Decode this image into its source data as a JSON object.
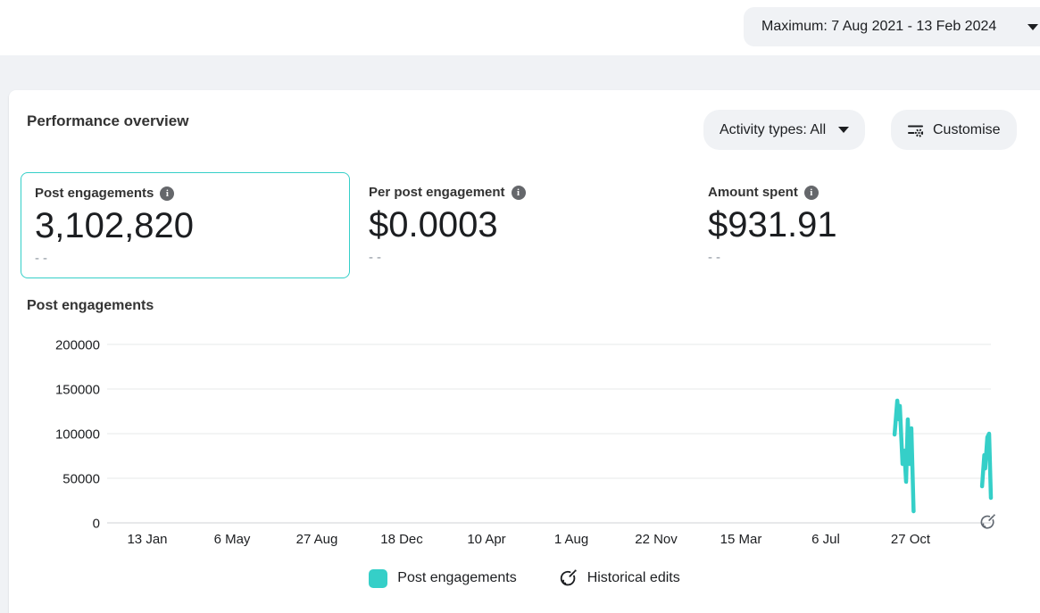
{
  "topbar": {
    "date_range_button": "Maximum: 7 Aug 2021 - 13 Feb 2024"
  },
  "panel": {
    "title": "Performance overview",
    "activity_types_button": "Activity types: All",
    "customise_button": "Customise",
    "metrics": [
      {
        "label": "Post engagements",
        "value": "3,102,820",
        "sub": "--",
        "selected": true
      },
      {
        "label": "Per post engagement",
        "value": "$0.0003",
        "sub": "--",
        "selected": false
      },
      {
        "label": "Amount spent",
        "value": "$931.91",
        "sub": "--",
        "selected": false
      }
    ],
    "chart_title": "Post engagements",
    "legend": {
      "series_label": "Post engagements",
      "historical_label": "Historical edits"
    }
  },
  "colors": {
    "accent": "#35cfc8",
    "grid": "#e7e8ea",
    "axis": "#cfd1d5"
  },
  "chart_data": {
    "type": "line",
    "title": "Post engagements",
    "xlabel": "",
    "ylabel": "",
    "ylim": [
      0,
      200000
    ],
    "yticks": [
      0,
      50000,
      100000,
      150000,
      200000
    ],
    "x_tick_labels": [
      "13 Jan",
      "6 May",
      "27 Aug",
      "18 Dec",
      "10 Apr",
      "1 Aug",
      "22 Nov",
      "15 Mar",
      "6 Jul",
      "27 Oct"
    ],
    "grid": true,
    "legend_position": "bottom",
    "color": "#35cfc8",
    "series": [
      {
        "name": "Post engagements",
        "segments": [
          [
            {
              "x": 0.891,
              "v": 99000
            },
            {
              "x": 0.894,
              "v": 137000
            },
            {
              "x": 0.896,
              "v": 116000
            },
            {
              "x": 0.897,
              "v": 131000
            },
            {
              "x": 0.9,
              "v": 66000
            },
            {
              "x": 0.902,
              "v": 81000
            },
            {
              "x": 0.904,
              "v": 46000
            },
            {
              "x": 0.906,
              "v": 116000
            },
            {
              "x": 0.908,
              "v": 66000
            },
            {
              "x": 0.91,
              "v": 106000
            },
            {
              "x": 0.9125,
              "v": 13000
            }
          ],
          [
            {
              "x": 0.99,
              "v": 41000
            },
            {
              "x": 0.9925,
              "v": 76000
            },
            {
              "x": 0.9935,
              "v": 61000
            },
            {
              "x": 0.996,
              "v": 96000
            },
            {
              "x": 0.998,
              "v": 100000
            },
            {
              "x": 1.0,
              "v": 28000
            }
          ]
        ]
      }
    ]
  }
}
